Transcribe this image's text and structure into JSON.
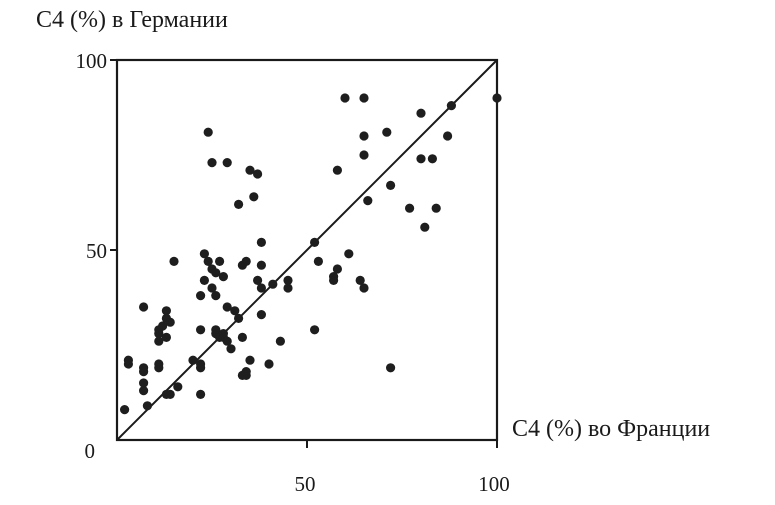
{
  "chart_data": {
    "type": "scatter",
    "title": "",
    "ylabel": "C4 (%) в Германии",
    "xlabel": "C4 (%) во Франции",
    "xlim": [
      0,
      100
    ],
    "ylim": [
      0,
      100
    ],
    "x_ticks": [
      "50",
      "100"
    ],
    "y_ticks": [
      "0",
      "50",
      "100"
    ],
    "grid": false,
    "reference_line": "y = x",
    "series": [
      {
        "points": [
          [
            2,
            8
          ],
          [
            3,
            20
          ],
          [
            3,
            21
          ],
          [
            7,
            19
          ],
          [
            7,
            18
          ],
          [
            7,
            35
          ],
          [
            7,
            15
          ],
          [
            7,
            13
          ],
          [
            8,
            9
          ],
          [
            11,
            20
          ],
          [
            11,
            19
          ],
          [
            11,
            26
          ],
          [
            11,
            28
          ],
          [
            11,
            29
          ],
          [
            12,
            30
          ],
          [
            13,
            32
          ],
          [
            13,
            34
          ],
          [
            13,
            27
          ],
          [
            14,
            31
          ],
          [
            13,
            12
          ],
          [
            14,
            12
          ],
          [
            15,
            47
          ],
          [
            16,
            14
          ],
          [
            20,
            21
          ],
          [
            22,
            12
          ],
          [
            22,
            38
          ],
          [
            22,
            29
          ],
          [
            22,
            20
          ],
          [
            22,
            19
          ],
          [
            23,
            42
          ],
          [
            23,
            49
          ],
          [
            24,
            81
          ],
          [
            24,
            47
          ],
          [
            25,
            73
          ],
          [
            25,
            45
          ],
          [
            25,
            40
          ],
          [
            26,
            44
          ],
          [
            26,
            28
          ],
          [
            26,
            29
          ],
          [
            26,
            38
          ],
          [
            27,
            47
          ],
          [
            27,
            27
          ],
          [
            28,
            43
          ],
          [
            28,
            28
          ],
          [
            28,
            27
          ],
          [
            29,
            73
          ],
          [
            29,
            35
          ],
          [
            29,
            26
          ],
          [
            30,
            24
          ],
          [
            31,
            34
          ],
          [
            32,
            32
          ],
          [
            32,
            62
          ],
          [
            33,
            46
          ],
          [
            33,
            27
          ],
          [
            33,
            17
          ],
          [
            34,
            47
          ],
          [
            34,
            17
          ],
          [
            34,
            18
          ],
          [
            35,
            21
          ],
          [
            35,
            71
          ],
          [
            36,
            64
          ],
          [
            37,
            42
          ],
          [
            37,
            70
          ],
          [
            38,
            52
          ],
          [
            38,
            46
          ],
          [
            38,
            40
          ],
          [
            38,
            33
          ],
          [
            40,
            20
          ],
          [
            41,
            41
          ],
          [
            43,
            26
          ],
          [
            45,
            42
          ],
          [
            45,
            40
          ],
          [
            52,
            52
          ],
          [
            52,
            29
          ],
          [
            53,
            47
          ],
          [
            57,
            43
          ],
          [
            57,
            42
          ],
          [
            58,
            71
          ],
          [
            58,
            45
          ],
          [
            60,
            90
          ],
          [
            61,
            49
          ],
          [
            64,
            42
          ],
          [
            65,
            90
          ],
          [
            65,
            80
          ],
          [
            65,
            75
          ],
          [
            65,
            40
          ],
          [
            66,
            63
          ],
          [
            71,
            81
          ],
          [
            72,
            67
          ],
          [
            72,
            19
          ],
          [
            77,
            61
          ],
          [
            80,
            86
          ],
          [
            80,
            74
          ],
          [
            81,
            56
          ],
          [
            83,
            74
          ],
          [
            84,
            61
          ],
          [
            87,
            80
          ],
          [
            88,
            88
          ],
          [
            100,
            90
          ]
        ]
      }
    ]
  }
}
